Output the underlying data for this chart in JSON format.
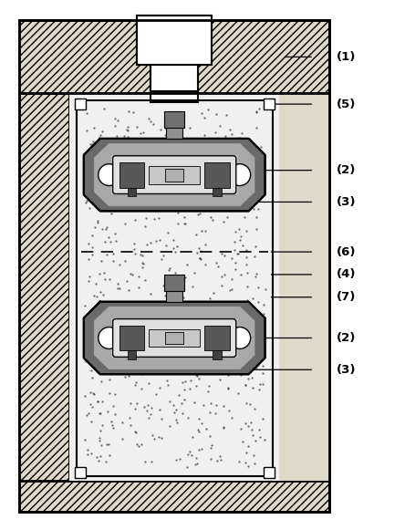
{
  "bg_color": "#ffffff",
  "hatch_color": "#000000",
  "wall_fc": "#e8e0d0",
  "wall_hatch": "////",
  "inner_bg": "#f5f5f5",
  "specimen_body_fc": "#909090",
  "specimen_body_fc2": "#b0b0b0",
  "specimen_light_fc": "#c8c8c8",
  "pin_fc": "#808080"
}
